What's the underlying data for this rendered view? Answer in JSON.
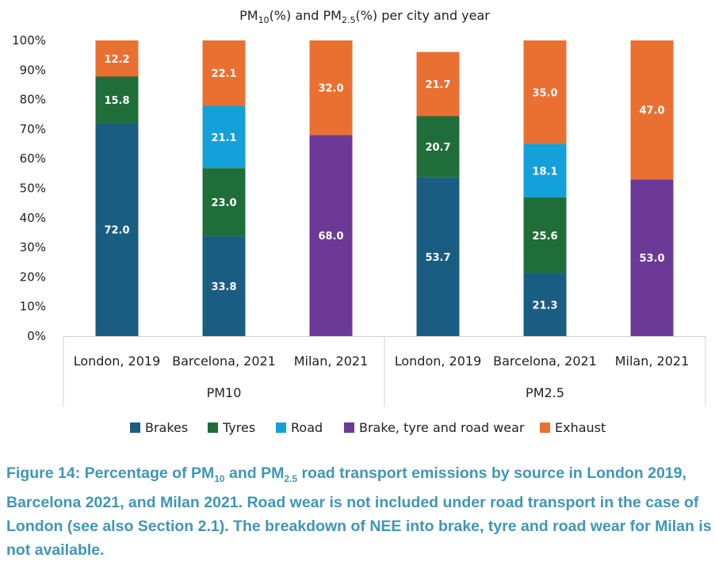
{
  "chart_data": {
    "type": "bar",
    "stacked": true,
    "title": {
      "pre": "PM",
      "sub1": "10",
      "mid": "(%) and PM",
      "sub2": "2.5",
      "post": "(%) per city and year"
    },
    "ylim": [
      0,
      100
    ],
    "yticks": [
      "0%",
      "10%",
      "20%",
      "30%",
      "40%",
      "50%",
      "60%",
      "70%",
      "80%",
      "90%",
      "100%"
    ],
    "groups": [
      {
        "label": "PM10",
        "categories": [
          "London, 2019",
          "Barcelona, 2021",
          "Milan, 2021"
        ]
      },
      {
        "label": "PM2.5",
        "categories": [
          "London, 2019",
          "Barcelona, 2021",
          "Milan, 2021"
        ]
      }
    ],
    "series": [
      {
        "name": "Brakes",
        "color": "#1a5d82",
        "values": [
          72.0,
          33.8,
          null,
          53.7,
          21.3,
          null
        ]
      },
      {
        "name": "Tyres",
        "color": "#1f6e3a",
        "values": [
          15.8,
          23.0,
          null,
          20.7,
          25.6,
          null
        ]
      },
      {
        "name": "Road",
        "color": "#14a0d8",
        "values": [
          null,
          21.1,
          null,
          null,
          18.1,
          null
        ]
      },
      {
        "name": "Brake, tyre and road wear",
        "color": "#6c3a96",
        "values": [
          null,
          null,
          68.0,
          null,
          null,
          53.0
        ]
      },
      {
        "name": "Exhaust",
        "color": "#ea7032",
        "values": [
          12.2,
          22.1,
          32.0,
          21.7,
          35.0,
          47.0
        ]
      }
    ],
    "legend_position": "bottom"
  },
  "caption": {
    "part1": "Figure 14: Percentage of PM",
    "sub1": "10",
    "part2": " and PM",
    "sub2": "2.5",
    "part3": " road transport emissions by source in London 2019, Barcelona 2021, and Milan 2021. Road wear is not included under road transport in the case of London (see also Section 2.1). The breakdown of NEE into brake, tyre and road wear for Milan is not available."
  }
}
